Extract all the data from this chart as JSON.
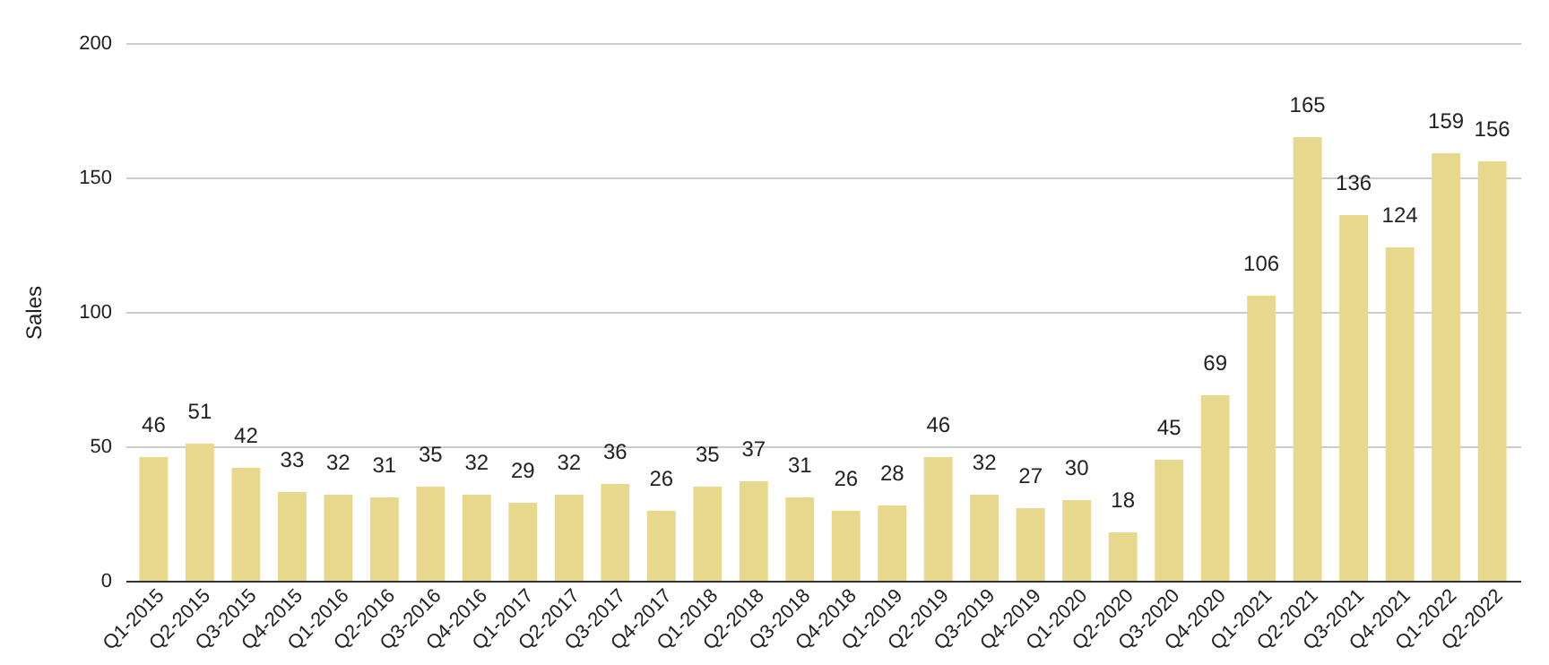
{
  "chart_data": {
    "type": "bar",
    "ylabel": "Sales",
    "categories": [
      "Q1-2015",
      "Q2-2015",
      "Q3-2015",
      "Q4-2015",
      "Q1-2016",
      "Q2-2016",
      "Q3-2016",
      "Q4-2016",
      "Q1-2017",
      "Q2-2017",
      "Q3-2017",
      "Q4-2017",
      "Q1-2018",
      "Q2-2018",
      "Q3-2018",
      "Q4-2018",
      "Q1-2019",
      "Q2-2019",
      "Q3-2019",
      "Q4-2019",
      "Q1-2020",
      "Q2-2020",
      "Q3-2020",
      "Q4-2020",
      "Q1-2021",
      "Q2-2021",
      "Q3-2021",
      "Q4-2021",
      "Q1-2022",
      "Q2-2022"
    ],
    "values": [
      46,
      51,
      42,
      33,
      32,
      31,
      35,
      32,
      29,
      32,
      36,
      26,
      35,
      37,
      31,
      26,
      28,
      46,
      32,
      27,
      30,
      18,
      45,
      69,
      106,
      165,
      136,
      124,
      159,
      156
    ],
    "color": "#e8d88e",
    "ylim": [
      0,
      200
    ],
    "yticks": [
      0,
      50,
      100,
      150,
      200
    ],
    "grid": "y",
    "data_labels": true
  }
}
